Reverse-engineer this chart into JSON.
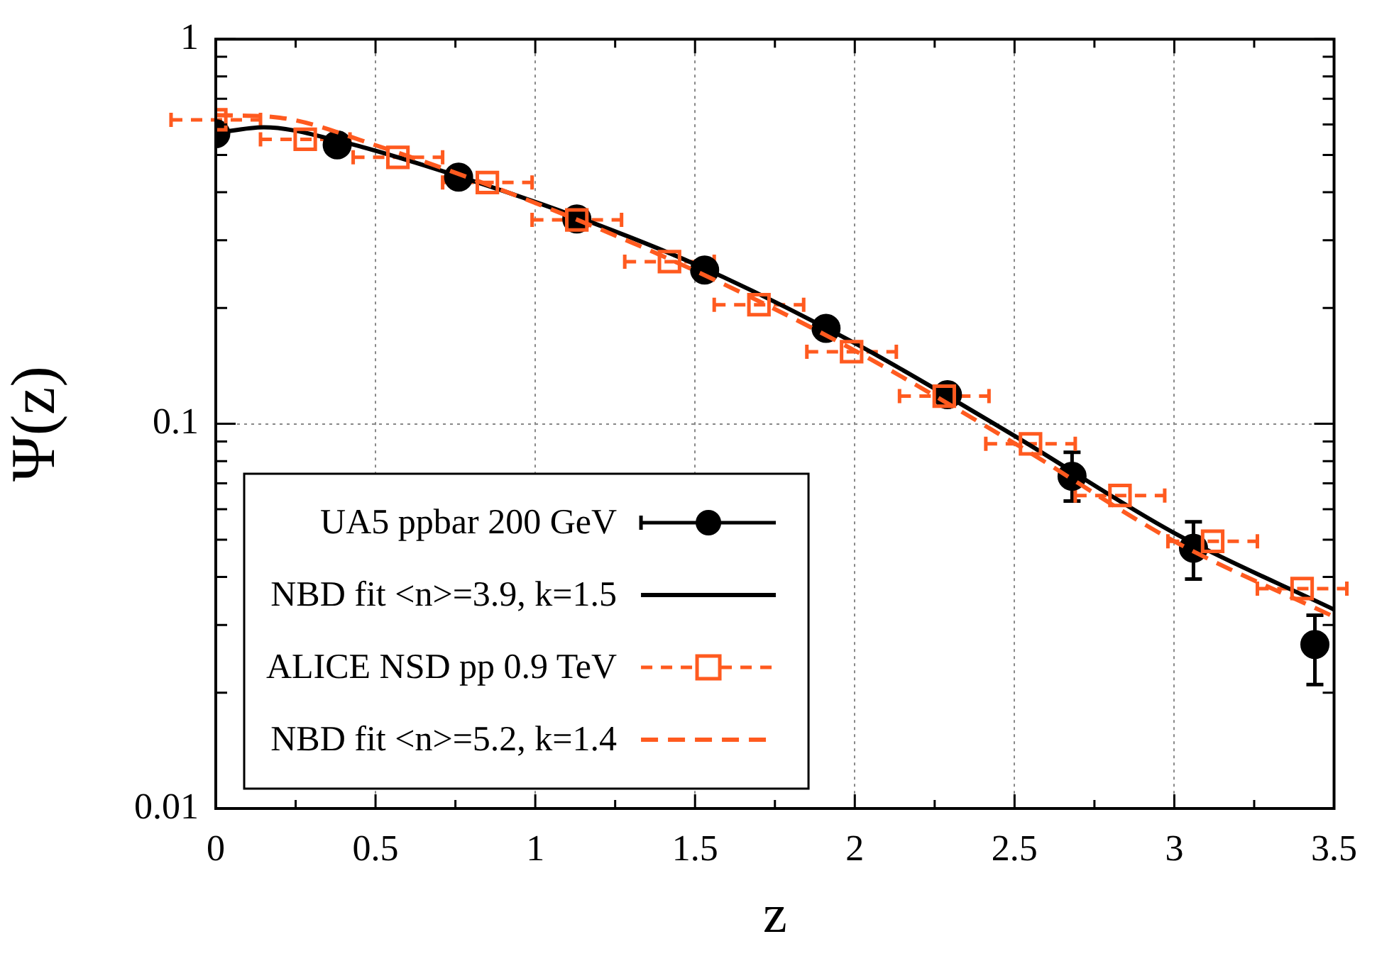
{
  "chart_data": {
    "type": "scatter",
    "xlabel": "z",
    "ylabel": "Ψ(z)",
    "log": "y",
    "grid": true,
    "legend": "bottom left",
    "xlim": [
      0,
      3.5
    ],
    "xticks": [
      0,
      {
        "value": 0.25,
        "label": null
      },
      0.5,
      {
        "value": 0.75,
        "label": null
      },
      1,
      {
        "value": 1.25,
        "label": null
      },
      1.5,
      {
        "value": 1.75,
        "label": null
      },
      2,
      {
        "value": 2.25,
        "label": null
      },
      2.5,
      {
        "value": 2.75,
        "label": null
      },
      3,
      {
        "value": 3.25,
        "label": null
      },
      3.5
    ],
    "ylim": [
      0.01,
      1
    ],
    "yticks": [
      0.01,
      {
        "value": 0.02,
        "label": null
      },
      {
        "value": 0.03,
        "label": null
      },
      {
        "value": 0.04,
        "label": null
      },
      {
        "value": 0.05,
        "label": null
      },
      {
        "value": 0.06,
        "label": null
      },
      {
        "value": 0.07,
        "label": null
      },
      {
        "value": 0.08,
        "label": null
      },
      {
        "value": 0.09,
        "label": null
      },
      0.1,
      {
        "value": 0.2,
        "label": null
      },
      {
        "value": 0.3,
        "label": null
      },
      {
        "value": 0.4,
        "label": null
      },
      {
        "value": 0.5,
        "label": null
      },
      {
        "value": 0.6,
        "label": null
      },
      {
        "value": 0.7,
        "label": null
      },
      {
        "value": 0.8,
        "label": null
      },
      {
        "value": 0.9,
        "label": null
      },
      1
    ],
    "series": [
      {
        "name": "UA5 ppbar 200 GeV",
        "type": "scatter",
        "color": "#000000",
        "marker": "circle",
        "x": [
          0,
          0.38,
          0.76,
          1.13,
          1.53,
          1.91,
          2.29,
          2.68,
          3.06,
          3.44
        ],
        "values": [
          0.568,
          0.531,
          0.438,
          0.341,
          0.251,
          0.177,
          0.119,
          0.0731,
          0.0475,
          0.0267
        ],
        "errors": [
          null,
          null,
          null,
          null,
          null,
          null,
          null,
          [
            0.063,
            0.0843
          ],
          [
            0.0395,
            0.0556
          ],
          [
            0.021,
            0.0318
          ]
        ]
      },
      {
        "name": "NBD fit <n>=3.9, k=1.5",
        "type": "line",
        "color": "#000000",
        "marker": "none",
        "line_style": "solid",
        "x": [
          0,
          0.15,
          0.38,
          0.76,
          1.13,
          1.5,
          2.0,
          2.5,
          3.0,
          3.5
        ],
        "values": [
          0.57,
          0.59,
          0.545,
          0.44,
          0.345,
          0.26,
          0.162,
          0.093,
          0.052,
          0.0329
        ]
      },
      {
        "name": "ALICE NSD pp 0.9 TeV",
        "type": "scatter",
        "color": "#ff5a1f",
        "marker": "square",
        "x": [
          0,
          0.28,
          0.57,
          0.85,
          1.13,
          1.42,
          1.7,
          1.99,
          2.28,
          2.55,
          2.83,
          3.12,
          3.4
        ],
        "values": [
          0.617,
          0.549,
          0.493,
          0.424,
          0.339,
          0.264,
          0.204,
          0.154,
          0.118,
          0.0887,
          0.0651,
          0.0495,
          0.0373
        ],
        "xerrors": [
          0.14,
          0.14,
          0.14,
          0.14,
          0.14,
          0.14,
          0.14,
          0.14,
          0.14,
          0.14,
          0.14,
          0.14,
          0.14
        ]
      },
      {
        "name": "NBD fit <n>=5.2, k=1.4",
        "type": "line",
        "color": "#ff5a1f",
        "marker": "none",
        "line_style": "dashed",
        "x": [
          0,
          0.2,
          0.5,
          1.0,
          1.5,
          2.0,
          2.5,
          3.0,
          3.5
        ],
        "values": [
          0.635,
          0.625,
          0.53,
          0.375,
          0.25,
          0.155,
          0.089,
          0.0495,
          0.0315
        ]
      }
    ]
  }
}
